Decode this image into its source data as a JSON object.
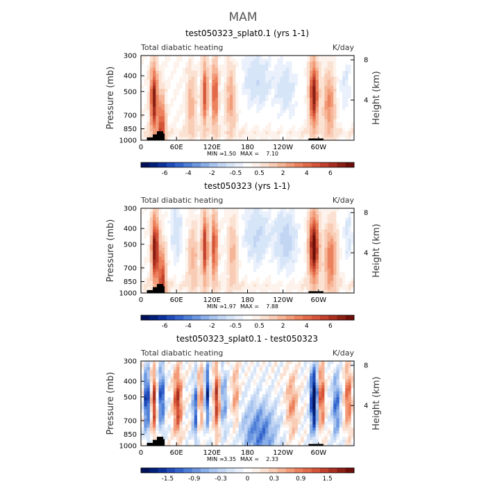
{
  "page_title": "MAM",
  "chart_data": [
    {
      "type": "heatmap",
      "title": "test050323_splat0.1 (yrs 1-1)",
      "left_label": "Total diabatic heating",
      "right_label": "K/day",
      "ylabel": "Pressure (mb)",
      "y2label": "Height (km)",
      "x_ticks": [
        "0",
        "60E",
        "120E",
        "180",
        "120W",
        "60W"
      ],
      "x_tick_lon": [
        0,
        60,
        120,
        180,
        240,
        300
      ],
      "xlim": [
        0,
        360
      ],
      "y_ticks": [
        "300",
        "400",
        "500",
        "700",
        "850",
        "1000"
      ],
      "y_tick_p": [
        300,
        400,
        500,
        700,
        850,
        1000
      ],
      "ylim": [
        300,
        1000
      ],
      "height_ticks": [
        "8",
        "4"
      ],
      "height_km": [
        8,
        4
      ],
      "min_label": "MIN =",
      "min_value": "-1.50",
      "max_label": "MAX =",
      "max_value": "7.10",
      "colorbar_ticks": [
        "-6",
        "-4",
        "-2",
        "-0.5",
        "0.5",
        "2",
        "4",
        "6"
      ],
      "features": [
        {
          "lon": 22,
          "p": 560,
          "amp": 6.5,
          "w": 6
        },
        {
          "lon": 35,
          "p": 850,
          "amp": 5.0,
          "w": 6
        },
        {
          "lon": 85,
          "p": 600,
          "amp": 2.0,
          "w": 8
        },
        {
          "lon": 108,
          "p": 520,
          "amp": 4.5,
          "w": 5
        },
        {
          "lon": 125,
          "p": 520,
          "amp": 4.8,
          "w": 5
        },
        {
          "lon": 152,
          "p": 560,
          "amp": 2.5,
          "w": 8
        },
        {
          "lon": 195,
          "p": 420,
          "amp": -1.4,
          "w": 25
        },
        {
          "lon": 245,
          "p": 480,
          "amp": -1.2,
          "w": 20
        },
        {
          "lon": 292,
          "p": 520,
          "amp": 6.5,
          "w": 7
        },
        {
          "lon": 318,
          "p": 600,
          "amp": 3.0,
          "w": 10
        },
        {
          "lon": 345,
          "p": 450,
          "amp": -0.9,
          "w": 12
        }
      ]
    },
    {
      "type": "heatmap",
      "title": "test050323 (yrs 1-1)",
      "left_label": "Total diabatic heating",
      "right_label": "K/day",
      "ylabel": "Pressure (mb)",
      "y2label": "Height (km)",
      "x_ticks": [
        "0",
        "60E",
        "120E",
        "180",
        "120W",
        "60W"
      ],
      "x_tick_lon": [
        0,
        60,
        120,
        180,
        240,
        300
      ],
      "xlim": [
        0,
        360
      ],
      "y_ticks": [
        "300",
        "400",
        "500",
        "700",
        "850",
        "1000"
      ],
      "y_tick_p": [
        300,
        400,
        500,
        700,
        850,
        1000
      ],
      "ylim": [
        300,
        1000
      ],
      "height_ticks": [
        "8",
        "4"
      ],
      "height_km": [
        8,
        4
      ],
      "min_label": "MIN =",
      "min_value": "-1.97",
      "max_label": "MAX =",
      "max_value": "7.88",
      "colorbar_ticks": [
        "-6",
        "-4",
        "-2",
        "-0.5",
        "0.5",
        "2",
        "4",
        "6"
      ],
      "features": [
        {
          "lon": 24,
          "p": 540,
          "amp": 7.0,
          "w": 6
        },
        {
          "lon": 36,
          "p": 850,
          "amp": 5.0,
          "w": 6
        },
        {
          "lon": 60,
          "p": 420,
          "amp": -1.3,
          "w": 12
        },
        {
          "lon": 88,
          "p": 600,
          "amp": 2.0,
          "w": 8
        },
        {
          "lon": 108,
          "p": 520,
          "amp": 5.5,
          "w": 5
        },
        {
          "lon": 124,
          "p": 520,
          "amp": 5.0,
          "w": 5
        },
        {
          "lon": 155,
          "p": 560,
          "amp": 2.0,
          "w": 8
        },
        {
          "lon": 195,
          "p": 430,
          "amp": -1.6,
          "w": 22
        },
        {
          "lon": 245,
          "p": 470,
          "amp": -1.8,
          "w": 20
        },
        {
          "lon": 292,
          "p": 520,
          "amp": 7.5,
          "w": 8
        },
        {
          "lon": 320,
          "p": 620,
          "amp": 3.5,
          "w": 10
        },
        {
          "lon": 350,
          "p": 440,
          "amp": -1.0,
          "w": 10
        }
      ]
    },
    {
      "type": "heatmap",
      "title": "test050323_splat0.1 - test050323",
      "left_label": "Total diabatic heating",
      "right_label": "K/day",
      "ylabel": "Pressure (mb)",
      "y2label": "Height (km)",
      "x_ticks": [
        "0",
        "60E",
        "120E",
        "180",
        "120W",
        "60W"
      ],
      "x_tick_lon": [
        0,
        60,
        120,
        180,
        240,
        300
      ],
      "xlim": [
        0,
        360
      ],
      "y_ticks": [
        "300",
        "400",
        "500",
        "700",
        "850",
        "1000"
      ],
      "y_tick_p": [
        300,
        400,
        500,
        700,
        850,
        1000
      ],
      "ylim": [
        300,
        1000
      ],
      "height_ticks": [
        "8",
        "4"
      ],
      "height_km": [
        8,
        4
      ],
      "min_label": "MIN =",
      "min_value": "-3.35",
      "max_label": "MAX =",
      "max_value": "2.33",
      "colorbar_ticks": [
        "-1.5",
        "-0.9",
        "-0.3",
        "0",
        "0.3",
        "0.9",
        "1.5"
      ],
      "features": [
        {
          "lon": 10,
          "p": 520,
          "amp": -2.5,
          "w": 4
        },
        {
          "lon": 22,
          "p": 540,
          "amp": 2.0,
          "w": 4
        },
        {
          "lon": 35,
          "p": 500,
          "amp": -2.0,
          "w": 5
        },
        {
          "lon": 62,
          "p": 540,
          "amp": 2.0,
          "w": 7
        },
        {
          "lon": 92,
          "p": 600,
          "amp": -1.6,
          "w": 5
        },
        {
          "lon": 100,
          "p": 500,
          "amp": 1.5,
          "w": 4
        },
        {
          "lon": 112,
          "p": 480,
          "amp": -2.0,
          "w": 4
        },
        {
          "lon": 128,
          "p": 520,
          "amp": 2.0,
          "w": 5
        },
        {
          "lon": 140,
          "p": 520,
          "amp": -1.2,
          "w": 5
        },
        {
          "lon": 160,
          "p": 500,
          "amp": 1.0,
          "w": 6
        },
        {
          "lon": 200,
          "p": 840,
          "amp": -1.4,
          "w": 30
        },
        {
          "lon": 255,
          "p": 560,
          "amp": 1.0,
          "w": 10
        },
        {
          "lon": 292,
          "p": 520,
          "amp": -3.0,
          "w": 6
        },
        {
          "lon": 305,
          "p": 500,
          "amp": 1.8,
          "w": 5
        },
        {
          "lon": 330,
          "p": 560,
          "amp": -1.5,
          "w": 7
        },
        {
          "lon": 350,
          "p": 500,
          "amp": 1.5,
          "w": 6
        }
      ]
    }
  ],
  "colors": {
    "neg": [
      "#eaf1fc",
      "#d7e5f8",
      "#c2d6f4",
      "#a9c5ef",
      "#8aaee8",
      "#6c96e0",
      "#4e7ed6",
      "#3463cc",
      "#1f4ab8",
      "#0d319a",
      "#001f78",
      "#00115a"
    ],
    "pos": [
      "#fdf3ec",
      "#fbe1d1",
      "#f9ccb6",
      "#f6b597",
      "#f29b78",
      "#ec815e",
      "#e26a49",
      "#d45539",
      "#c1412c",
      "#a82f1f",
      "#8a1f14",
      "#6e0e08"
    ]
  }
}
